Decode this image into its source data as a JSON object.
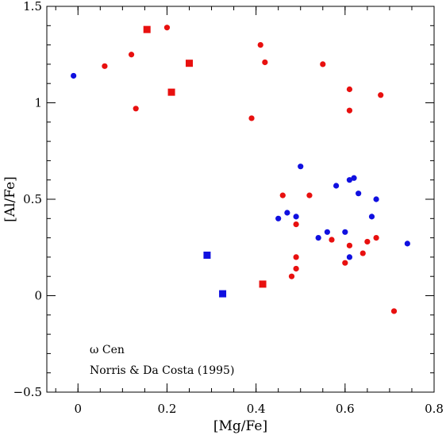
{
  "chart_data": {
    "type": "scatter",
    "xlabel": "[Mg/Fe]",
    "ylabel": "[Al/Fe]",
    "xlim": [
      -0.07,
      0.8
    ],
    "ylim": [
      -0.5,
      1.5
    ],
    "xticks": [
      {
        "v": 0,
        "label": "0"
      },
      {
        "v": 0.2,
        "label": "0.2"
      },
      {
        "v": 0.4,
        "label": "0.4"
      },
      {
        "v": 0.6,
        "label": "0.6"
      },
      {
        "v": 0.8,
        "label": "0.8"
      }
    ],
    "yticks": [
      {
        "v": -0.5,
        "label": "−0.5"
      },
      {
        "v": 0,
        "label": "0"
      },
      {
        "v": 0.5,
        "label": "0.5"
      },
      {
        "v": 1,
        "label": "1"
      },
      {
        "v": 1.5,
        "label": "1.5"
      }
    ],
    "x_minor_step": 0.05,
    "y_minor_step": 0.1,
    "grid": false,
    "legend": "none",
    "annotations": [
      "ω Cen",
      "Norris & Da Costa (1995)"
    ],
    "series": [
      {
        "color": "#e8100f",
        "marker": "circle",
        "points": [
          [
            0.06,
            1.19
          ],
          [
            0.12,
            1.25
          ],
          [
            0.13,
            0.97
          ],
          [
            0.2,
            1.39
          ],
          [
            0.39,
            0.92
          ],
          [
            0.41,
            1.3
          ],
          [
            0.42,
            1.21
          ],
          [
            0.55,
            1.2
          ],
          [
            0.61,
            1.07
          ],
          [
            0.61,
            0.96
          ],
          [
            0.68,
            1.04
          ],
          [
            0.46,
            0.52
          ],
          [
            0.52,
            0.52
          ],
          [
            0.49,
            0.37
          ],
          [
            0.57,
            0.29
          ],
          [
            0.61,
            0.26
          ],
          [
            0.65,
            0.28
          ],
          [
            0.67,
            0.3
          ],
          [
            0.64,
            0.22
          ],
          [
            0.49,
            0.2
          ],
          [
            0.49,
            0.14
          ],
          [
            0.48,
            0.1
          ],
          [
            0.6,
            0.17
          ],
          [
            0.71,
            -0.08
          ]
        ]
      },
      {
        "color": "#e8100f",
        "marker": "square",
        "points": [
          [
            0.155,
            1.38
          ],
          [
            0.25,
            1.205
          ],
          [
            0.21,
            1.055
          ],
          [
            0.415,
            0.06
          ]
        ]
      },
      {
        "color": "#1010e0",
        "marker": "circle",
        "points": [
          [
            -0.01,
            1.14
          ],
          [
            0.5,
            0.67
          ],
          [
            0.62,
            0.61
          ],
          [
            0.61,
            0.6
          ],
          [
            0.58,
            0.57
          ],
          [
            0.63,
            0.53
          ],
          [
            0.67,
            0.5
          ],
          [
            0.47,
            0.43
          ],
          [
            0.49,
            0.41
          ],
          [
            0.45,
            0.4
          ],
          [
            0.66,
            0.41
          ],
          [
            0.56,
            0.33
          ],
          [
            0.6,
            0.33
          ],
          [
            0.54,
            0.3
          ],
          [
            0.74,
            0.27
          ],
          [
            0.61,
            0.2
          ]
        ]
      },
      {
        "color": "#1010e0",
        "marker": "square",
        "points": [
          [
            0.29,
            0.21
          ],
          [
            0.325,
            0.01
          ]
        ]
      }
    ]
  }
}
